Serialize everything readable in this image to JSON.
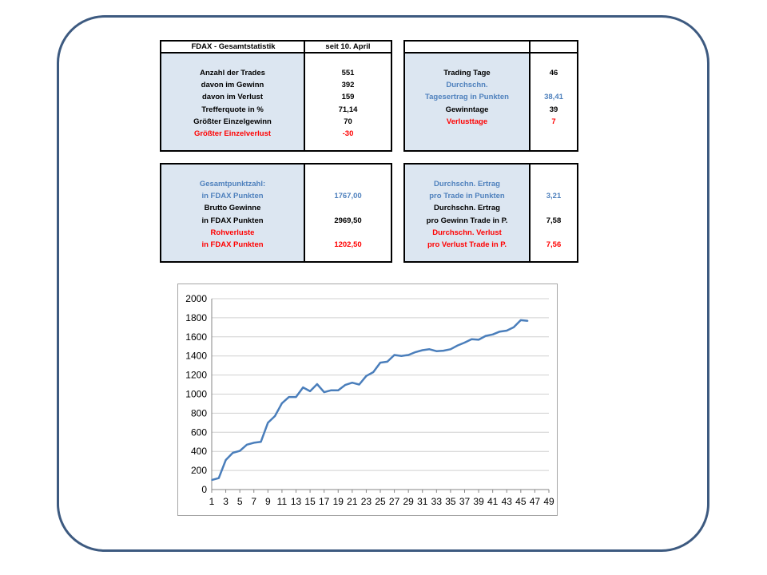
{
  "table1": {
    "header": [
      "FDAX - Gesamtstatistik",
      "seit 10. April"
    ],
    "rows": [
      {
        "label": "Anzahl der Trades",
        "value": "551",
        "color": "black"
      },
      {
        "label": "davon im Gewinn",
        "value": "392",
        "color": "black"
      },
      {
        "label": "davon im Verlust",
        "value": "159",
        "color": "black"
      },
      {
        "label": "Trefferquote in %",
        "value": "71,14",
        "color": "black"
      },
      {
        "label": "Größter Einzelgewinn",
        "value": "70",
        "color": "black"
      },
      {
        "label": "Größter Einzelverlust",
        "value": "-30",
        "color": "red"
      }
    ]
  },
  "table2": {
    "rows": [
      {
        "label": "Trading Tage",
        "value": "46",
        "color": "black"
      },
      {
        "label": "Durchschn.",
        "value": "",
        "color": "blue"
      },
      {
        "label": "Tagesertrag in Punkten",
        "value": "38,41",
        "color": "blue"
      },
      {
        "label": "Gewinntage",
        "value": "39",
        "color": "black"
      },
      {
        "label": "Verlusttage",
        "value": "7",
        "color": "red"
      }
    ]
  },
  "table3": {
    "rows": [
      {
        "label": "Gesamtpunktzahl:",
        "value": "",
        "color": "blue"
      },
      {
        "label": "in FDAX Punkten",
        "value": "1767,00",
        "color": "blue"
      },
      {
        "label": "Brutto Gewinne",
        "value": "",
        "color": "black"
      },
      {
        "label": "in FDAX Punkten",
        "value": "2969,50",
        "color": "black"
      },
      {
        "label": "Rohverluste",
        "value": "",
        "color": "red"
      },
      {
        "label": "in FDAX Punkten",
        "value": "1202,50",
        "color": "red"
      }
    ]
  },
  "table4": {
    "rows": [
      {
        "label": "Durchschn. Ertrag",
        "value": "",
        "color": "blue"
      },
      {
        "label": "pro Trade in Punkten",
        "value": "3,21",
        "color": "blue"
      },
      {
        "label": "Durchschn. Ertrag",
        "value": "",
        "color": "black"
      },
      {
        "label": "pro Gewinn Trade in P.",
        "value": "7,58",
        "color": "black"
      },
      {
        "label": "Durchschn. Verlust",
        "value": "",
        "color": "red"
      },
      {
        "label": "pro Verlust Trade in P.",
        "value": "7,56",
        "color": "red"
      }
    ]
  },
  "colors": {
    "line": "#4a7ebb",
    "blue_text": "#4f81bd",
    "red_text": "#ff0000",
    "label_bg": "#dce6f1",
    "frame": "#3d5a80"
  },
  "chart_data": {
    "type": "line",
    "title": "",
    "xlabel": "",
    "ylabel": "",
    "ylim": [
      0,
      2000
    ],
    "xlim": [
      1,
      49
    ],
    "yticks": [
      0,
      200,
      400,
      600,
      800,
      1000,
      1200,
      1400,
      1600,
      1800,
      2000
    ],
    "xticks": [
      1,
      3,
      5,
      7,
      9,
      11,
      13,
      15,
      17,
      19,
      21,
      23,
      25,
      27,
      29,
      31,
      33,
      35,
      37,
      39,
      41,
      43,
      45,
      47,
      49
    ],
    "grid": "horizontal",
    "legend": "none",
    "series": [
      {
        "x": [
          1,
          2,
          3,
          4,
          5,
          6,
          7,
          8,
          9,
          10,
          11,
          12,
          13,
          14,
          15,
          16,
          17,
          18,
          19,
          20,
          21,
          22,
          23,
          24,
          25,
          26,
          27,
          28,
          29,
          30,
          31,
          32,
          33,
          34,
          35,
          36,
          37,
          38,
          39,
          40,
          41,
          42,
          43,
          44,
          45,
          46
        ],
        "values": [
          100,
          120,
          310,
          385,
          405,
          470,
          490,
          500,
          700,
          770,
          905,
          970,
          970,
          1070,
          1030,
          1105,
          1020,
          1040,
          1040,
          1095,
          1120,
          1100,
          1190,
          1230,
          1330,
          1340,
          1410,
          1400,
          1410,
          1440,
          1460,
          1470,
          1450,
          1455,
          1470,
          1510,
          1540,
          1575,
          1570,
          1610,
          1625,
          1655,
          1665,
          1700,
          1775,
          1767
        ]
      }
    ]
  }
}
